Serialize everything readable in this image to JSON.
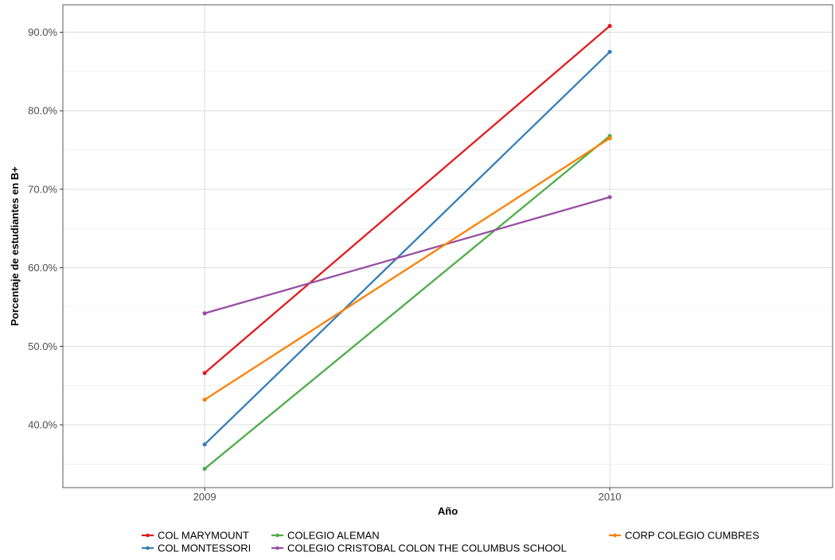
{
  "chart_data": {
    "type": "line",
    "title": "",
    "xlabel": "Año",
    "ylabel": "Porcentaje de estudiantes en B+",
    "x": [
      2009,
      2010
    ],
    "x_tick_labels": [
      "2009",
      "2010"
    ],
    "xlim": [
      2008.65,
      2010.55
    ],
    "ylim": [
      0.32,
      0.935
    ],
    "y_ticks": [
      0.4,
      0.5,
      0.6,
      0.7,
      0.8,
      0.9
    ],
    "y_tick_labels": [
      "40.0%",
      "50.0%",
      "60.0%",
      "70.0%",
      "80.0%",
      "90.0%"
    ],
    "grid": true,
    "legend_position": "bottom",
    "series": [
      {
        "name": "COL MARYMOUNT",
        "color": "#e41a1c",
        "values": [
          0.466,
          0.908
        ]
      },
      {
        "name": "COL MONTESSORI",
        "color": "#377eb8",
        "values": [
          0.375,
          0.875
        ]
      },
      {
        "name": "COLEGIO ALEMAN",
        "color": "#4daf4a",
        "values": [
          0.344,
          0.768
        ]
      },
      {
        "name": "COLEGIO CRISTOBAL COLON THE COLUMBUS SCHOOL",
        "color": "#984ea3",
        "values": [
          0.542,
          0.69
        ]
      },
      {
        "name": "CORP COLEGIO CUMBRES",
        "color": "#ff7f00",
        "values": [
          0.432,
          0.765
        ]
      }
    ]
  }
}
